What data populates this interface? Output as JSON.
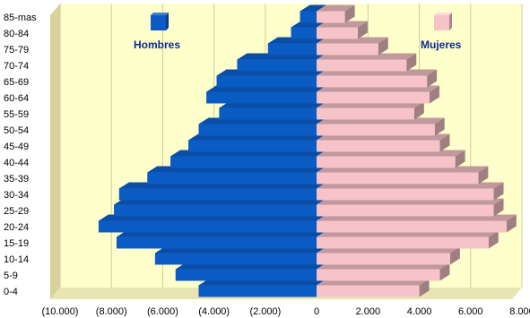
{
  "chart_data": {
    "type": "bar",
    "subtype": "population-pyramid",
    "title": "",
    "xlabel": "",
    "ylabel": "",
    "categories": [
      "0-4",
      "5-9",
      "10-14",
      "15-19",
      "20-24",
      "25-29",
      "30-34",
      "35-39",
      "40-44",
      "45-49",
      "50-54",
      "55-59",
      "60-64",
      "65-69",
      "70-74",
      "75-79",
      "80-84",
      "85-mas"
    ],
    "series": [
      {
        "name": "Hombres",
        "color": "#0b5bc4",
        "values": [
          -4600,
          -5500,
          -6300,
          -7800,
          -8500,
          -7900,
          -7700,
          -6600,
          -5700,
          -5000,
          -4600,
          -3800,
          -4300,
          -3900,
          -3100,
          -1900,
          -1000,
          -650
        ]
      },
      {
        "name": "Mujeres",
        "color": "#f6c3c9",
        "values": [
          4000,
          4800,
          5200,
          6700,
          7400,
          6900,
          6900,
          6300,
          5400,
          4800,
          4600,
          3800,
          4400,
          4300,
          3500,
          2400,
          1600,
          1100
        ]
      }
    ],
    "xlim": [
      -10000,
      8000
    ],
    "xticks": [
      -10000,
      -8000,
      -6000,
      -4000,
      -2000,
      0,
      2000,
      4000,
      6000,
      8000
    ],
    "xtick_labels": [
      "(10.000)",
      "(8.000)",
      "(6.000)",
      "(4.000)",
      "(2.000)",
      "0",
      "2.000",
      "4.000",
      "6.000",
      "8.000"
    ],
    "grid": true,
    "legend": [
      "top-left",
      "top-right"
    ]
  }
}
